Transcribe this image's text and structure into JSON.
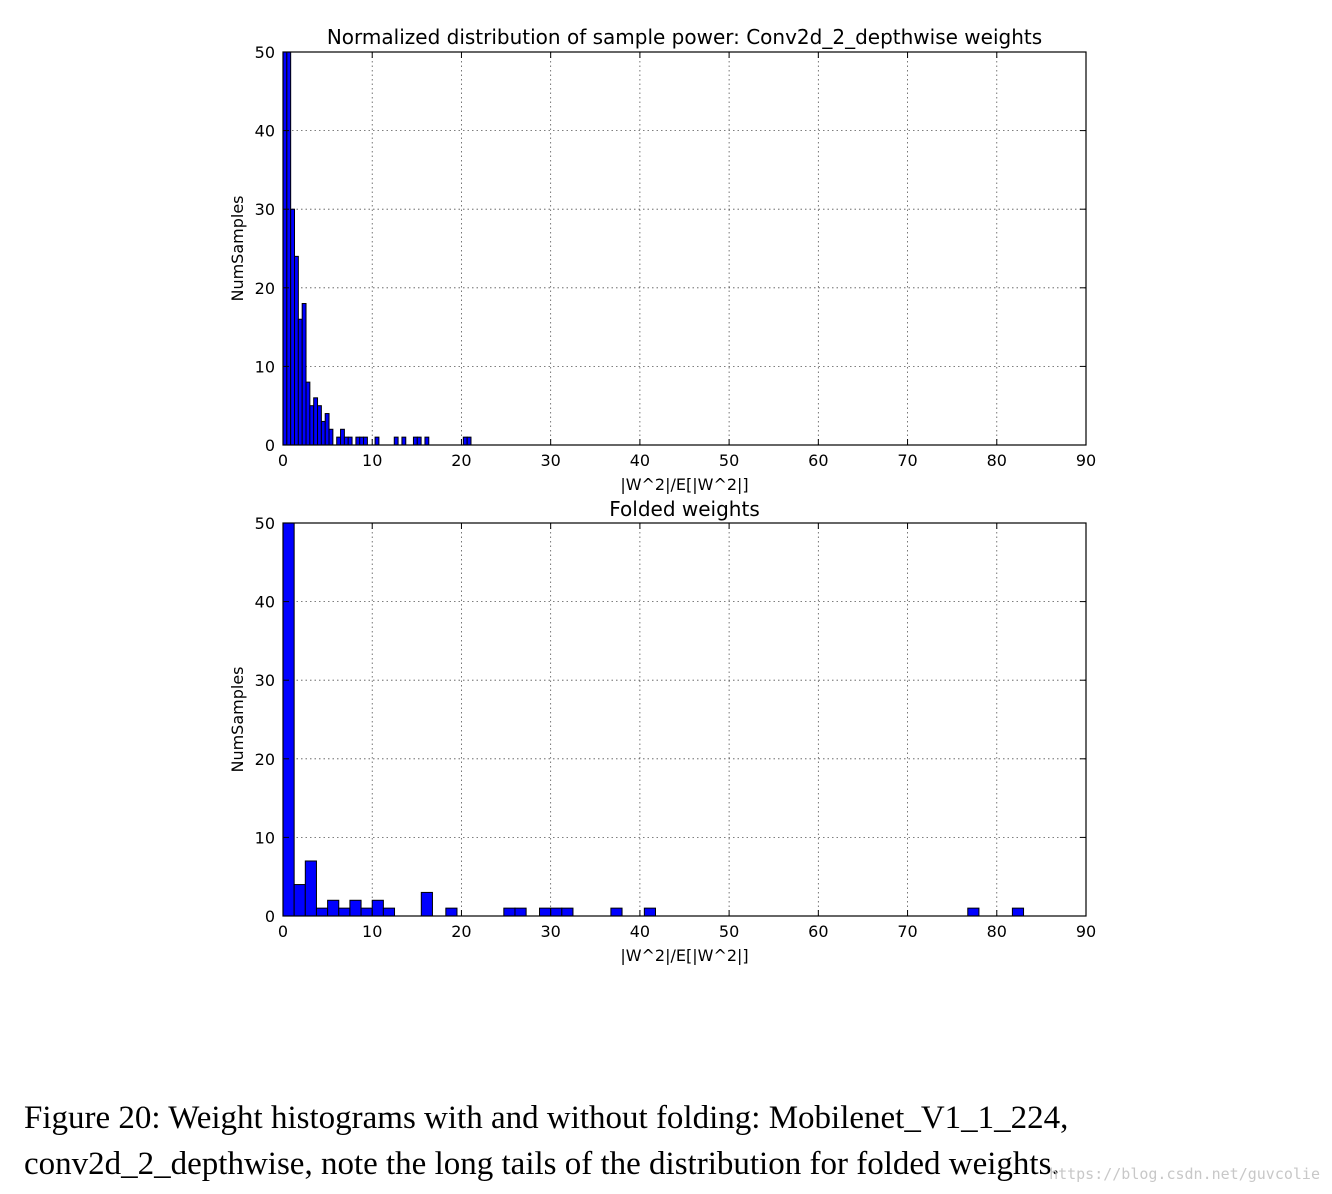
{
  "chart_data": [
    {
      "type": "bar",
      "title": "Normalized distribution of sample power: Conv2d_2_depthwise weights",
      "xlabel": "|W^2|/E[|W^2|]",
      "ylabel": "NumSamples",
      "xlim": [
        0,
        90
      ],
      "ylim": [
        0,
        50
      ],
      "xticks": [
        0,
        10,
        20,
        30,
        40,
        50,
        60,
        70,
        80,
        90
      ],
      "yticks": [
        0,
        10,
        20,
        30,
        40,
        50
      ],
      "grid": true,
      "bar_color": "#0000ff",
      "bin_width": 0.43,
      "bins": [
        [
          0.0,
          50
        ],
        [
          0.43,
          50
        ],
        [
          0.86,
          30
        ],
        [
          1.29,
          24
        ],
        [
          1.72,
          16
        ],
        [
          2.15,
          18
        ],
        [
          2.58,
          8
        ],
        [
          3.01,
          5
        ],
        [
          3.44,
          6
        ],
        [
          3.87,
          5
        ],
        [
          4.3,
          3
        ],
        [
          4.73,
          4
        ],
        [
          5.16,
          2
        ],
        [
          5.59,
          0
        ],
        [
          6.02,
          1
        ],
        [
          6.45,
          2
        ],
        [
          6.88,
          1
        ],
        [
          7.31,
          1
        ],
        [
          8.17,
          1
        ],
        [
          8.6,
          1
        ],
        [
          9.03,
          1
        ],
        [
          10.32,
          1
        ],
        [
          12.47,
          1
        ],
        [
          13.33,
          1
        ],
        [
          14.62,
          1
        ],
        [
          15.05,
          1
        ],
        [
          15.91,
          1
        ],
        [
          20.21,
          1
        ],
        [
          20.64,
          1
        ]
      ]
    },
    {
      "type": "bar",
      "title": "Folded weights",
      "xlabel": "|W^2|/E[|W^2|]",
      "ylabel": "NumSamples",
      "xlim": [
        0,
        90
      ],
      "ylim": [
        0,
        50
      ],
      "xticks": [
        0,
        10,
        20,
        30,
        40,
        50,
        60,
        70,
        80,
        90
      ],
      "yticks": [
        0,
        10,
        20,
        30,
        40,
        50
      ],
      "grid": true,
      "bar_color": "#0000ff",
      "bin_width": 1.25,
      "bins": [
        [
          0.0,
          50
        ],
        [
          1.25,
          4
        ],
        [
          2.5,
          7
        ],
        [
          3.75,
          1
        ],
        [
          5.0,
          2
        ],
        [
          6.25,
          1
        ],
        [
          7.5,
          2
        ],
        [
          8.75,
          1
        ],
        [
          10.0,
          2
        ],
        [
          11.25,
          1
        ],
        [
          15.5,
          3
        ],
        [
          18.25,
          1
        ],
        [
          24.75,
          1
        ],
        [
          26.0,
          1
        ],
        [
          28.75,
          1
        ],
        [
          30.0,
          1
        ],
        [
          31.25,
          1
        ],
        [
          36.75,
          1
        ],
        [
          40.5,
          1
        ],
        [
          76.75,
          1
        ],
        [
          81.75,
          1
        ]
      ]
    }
  ],
  "caption": {
    "line1": "Figure 20:  Weight histograms with and without folding:  Mobilenet_V1_1_224,",
    "line2": "conv2d_2_depthwise, note the long tails of the distribution for folded weights."
  },
  "watermark": "https://blog.csdn.net/guvcolie"
}
